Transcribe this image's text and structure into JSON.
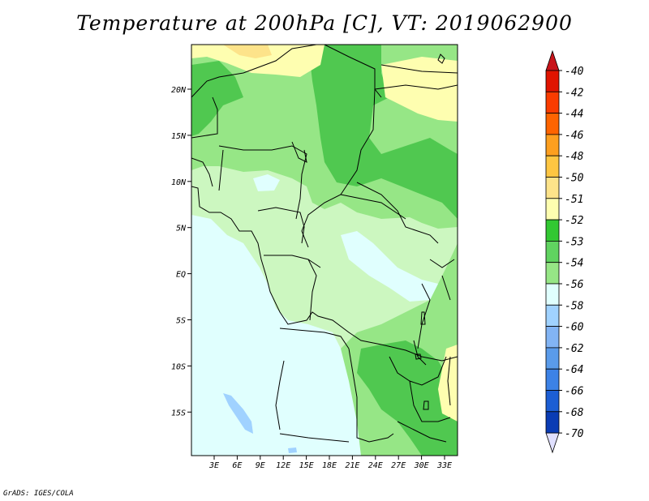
{
  "title": "Temperature at 200hPa [C], VT: 2019062900",
  "credit": "GrADS: IGES/COLA",
  "map": {
    "lat_labels": [
      "20N",
      "15N",
      "10N",
      "5N",
      "EQ",
      "5S",
      "10S",
      "15S"
    ],
    "lon_labels": [
      "3E",
      "6E",
      "9E",
      "12E",
      "15E",
      "18E",
      "21E",
      "24E",
      "27E",
      "30E",
      "33E"
    ],
    "region_colors": {
      "cold_lt54": "#e0fffe",
      "very_cold": "#a0d2ff",
      "band_54_53": "#ccf7c0",
      "band_53_52": "#96e686",
      "band_52_51": "#50c850",
      "band_51_50": "#fefeb0",
      "band_50_48": "#fde38a"
    }
  },
  "colorbar": {
    "labels": [
      "-40",
      "-42",
      "-44",
      "-46",
      "-48",
      "-50",
      "-51",
      "-52",
      "-53",
      "-54",
      "-56",
      "-58",
      "-60",
      "-62",
      "-64",
      "-66",
      "-68",
      "-70"
    ],
    "colors": [
      "#e01400",
      "#fa3c00",
      "#fe6400",
      "#fd9f1f",
      "#fec642",
      "#fde38a",
      "#fefeb0",
      "#32c832",
      "#60d360",
      "#96e686",
      "#e0fffe",
      "#a0d2ff",
      "#82b4f4",
      "#5a9bea",
      "#3c82e6",
      "#1c5ed4",
      "#0a3cb4",
      "#081e7c"
    ],
    "top_arrow_color": "#c8141a",
    "bottom_arrow_color": "#e0e0ff"
  }
}
